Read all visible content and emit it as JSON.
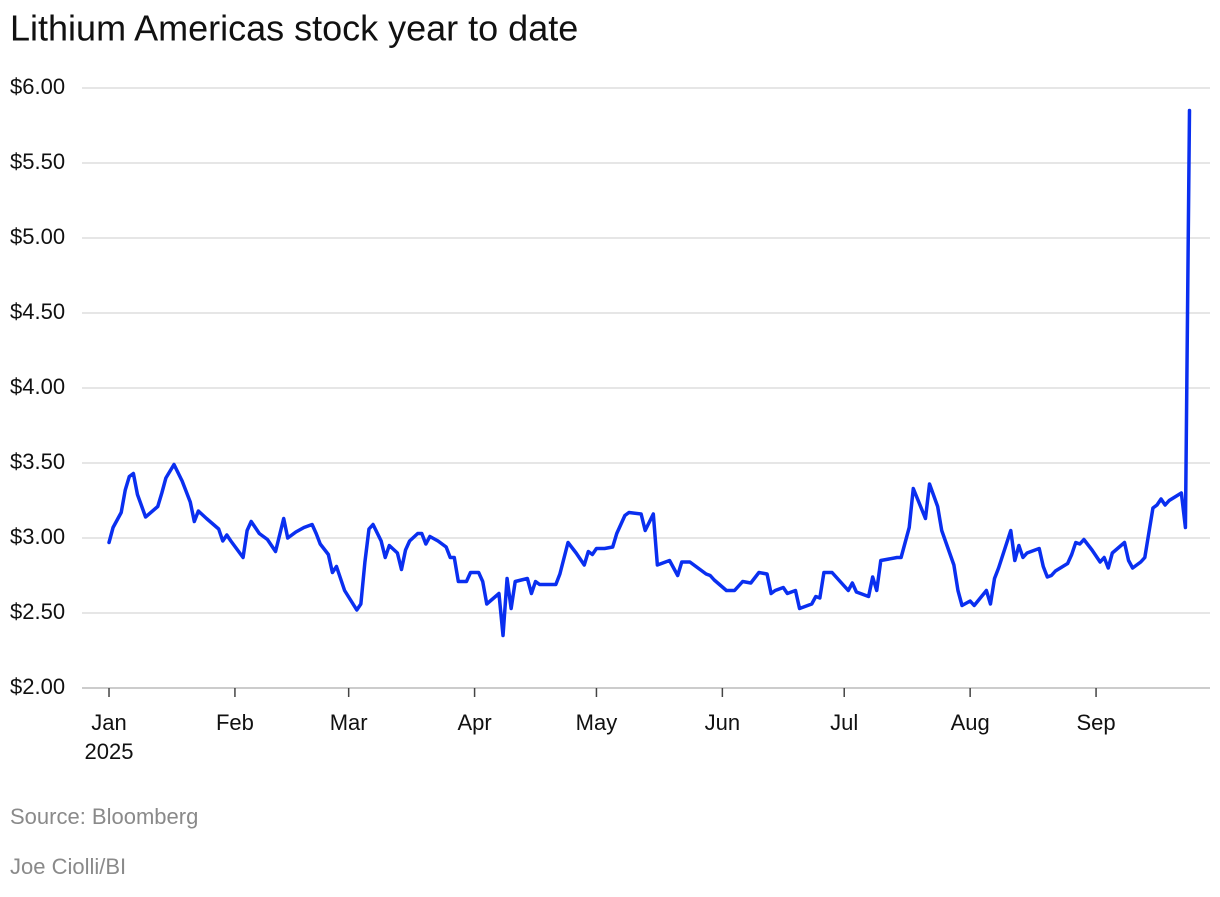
{
  "chart_data": {
    "type": "line",
    "title": "Lithium Americas stock year to date",
    "source": "Source: Bloomberg",
    "credit": "Joe Ciolli/BI",
    "x_year_label": "2025",
    "color": "#0a2ff0",
    "grid": true,
    "xlim": [
      -5.65,
      272.05
    ],
    "xticks": [
      {
        "value": 1,
        "label": "Jan"
      },
      {
        "value": 32,
        "label": "Feb"
      },
      {
        "value": 60,
        "label": "Mar"
      },
      {
        "value": 91,
        "label": "Apr"
      },
      {
        "value": 121,
        "label": "May"
      },
      {
        "value": 152,
        "label": "Jun"
      },
      {
        "value": 182,
        "label": "Jul"
      },
      {
        "value": 213,
        "label": "Aug"
      },
      {
        "value": 244,
        "label": "Sep"
      }
    ],
    "ylim": [
      2,
      6
    ],
    "yticks": [
      {
        "value": 2,
        "label": "$2.00"
      },
      {
        "value": 2.5,
        "label": "$2.50"
      },
      {
        "value": 3,
        "label": "$3.00"
      },
      {
        "value": 3.5,
        "label": "$3.50"
      },
      {
        "value": 4,
        "label": "$4.00"
      },
      {
        "value": 4.5,
        "label": "$4.50"
      },
      {
        "value": 5,
        "label": "$5.00"
      },
      {
        "value": 5.5,
        "label": "$5.50"
      },
      {
        "value": 6,
        "label": "$6.00"
      }
    ],
    "x": [
      1,
      2,
      4,
      5,
      6,
      7,
      8,
      10,
      13,
      14,
      15,
      17,
      19,
      21,
      22,
      23,
      25,
      28,
      29,
      30,
      31,
      34,
      35,
      36,
      38,
      40,
      42,
      44,
      45,
      47,
      49,
      51,
      52,
      53,
      55,
      56,
      57,
      59,
      62,
      63,
      64,
      65,
      66,
      68,
      69,
      70,
      72,
      73,
      74,
      75,
      77,
      78,
      79,
      80,
      82,
      84,
      85,
      86,
      87,
      89,
      90,
      92,
      93,
      94,
      97,
      98,
      99,
      100,
      101,
      104,
      105,
      106,
      107,
      111,
      112,
      114,
      116,
      118,
      119,
      120,
      121,
      123,
      125,
      126,
      128,
      129,
      132,
      133,
      135,
      136,
      139,
      141,
      142,
      144,
      148,
      149,
      150,
      153,
      155,
      157,
      159,
      161,
      163,
      164,
      165,
      167,
      168,
      170,
      171,
      174,
      175,
      176,
      177,
      179,
      181,
      183,
      184,
      185,
      188,
      189,
      190,
      191,
      195,
      196,
      198,
      199,
      202,
      203,
      205,
      206,
      209,
      210,
      211,
      213,
      214,
      217,
      218,
      219,
      220,
      223,
      224,
      225,
      226,
      227,
      230,
      231,
      232,
      233,
      234,
      237,
      238,
      239,
      240,
      241,
      243,
      245,
      246,
      247,
      248,
      251,
      252,
      253,
      255,
      256,
      258,
      259,
      260,
      261,
      262,
      265,
      266,
      267
    ],
    "values": [
      2.97,
      3.07,
      3.17,
      3.32,
      3.41,
      3.43,
      3.29,
      3.14,
      3.21,
      3.3,
      3.4,
      3.49,
      3.38,
      3.24,
      3.11,
      3.18,
      3.13,
      3.06,
      2.98,
      3.02,
      2.98,
      2.87,
      3.05,
      3.11,
      3.03,
      2.99,
      2.91,
      3.13,
      3.0,
      3.04,
      3.07,
      3.09,
      3.03,
      2.96,
      2.89,
      2.77,
      2.81,
      2.65,
      2.52,
      2.56,
      2.84,
      3.06,
      3.09,
      2.98,
      2.87,
      2.95,
      2.9,
      2.79,
      2.92,
      2.98,
      3.03,
      3.03,
      2.96,
      3.01,
      2.98,
      2.94,
      2.87,
      2.87,
      2.71,
      2.71,
      2.77,
      2.77,
      2.71,
      2.56,
      2.63,
      2.35,
      2.73,
      2.53,
      2.71,
      2.73,
      2.63,
      2.71,
      2.69,
      2.69,
      2.76,
      2.97,
      2.9,
      2.82,
      2.91,
      2.89,
      2.93,
      2.93,
      2.94,
      3.03,
      3.15,
      3.17,
      3.16,
      3.05,
      3.16,
      2.82,
      2.85,
      2.75,
      2.84,
      2.84,
      2.76,
      2.75,
      2.72,
      2.65,
      2.65,
      2.71,
      2.7,
      2.77,
      2.76,
      2.63,
      2.65,
      2.67,
      2.63,
      2.65,
      2.53,
      2.56,
      2.61,
      2.6,
      2.77,
      2.77,
      2.71,
      2.65,
      2.7,
      2.64,
      2.61,
      2.74,
      2.65,
      2.85,
      2.87,
      2.87,
      3.07,
      3.33,
      3.13,
      3.36,
      3.21,
      3.05,
      2.82,
      2.65,
      2.55,
      2.58,
      2.55,
      2.65,
      2.56,
      2.73,
      2.8,
      3.05,
      2.85,
      2.95,
      2.87,
      2.9,
      2.93,
      2.81,
      2.74,
      2.75,
      2.78,
      2.83,
      2.89,
      2.97,
      2.96,
      2.99,
      2.92,
      2.84,
      2.87,
      2.8,
      2.9,
      2.97,
      2.85,
      2.8,
      2.84,
      2.87,
      3.2,
      3.22,
      3.26,
      3.22,
      3.25,
      3.3,
      3.07,
      5.85
    ]
  }
}
